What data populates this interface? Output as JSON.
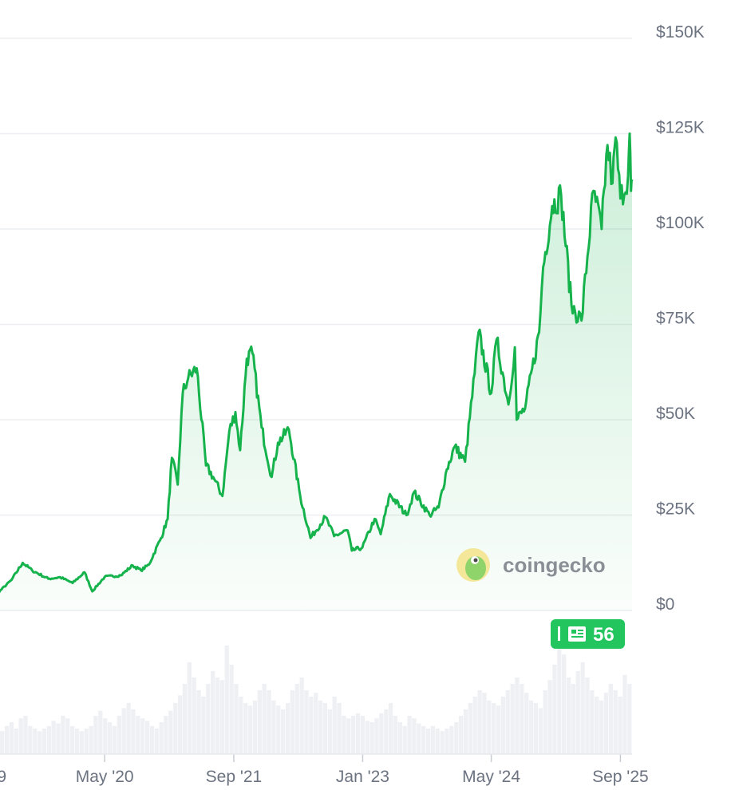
{
  "chart_data": {
    "type": "area",
    "title": "",
    "xlabel": "",
    "ylabel": "",
    "x_range": [
      "2019-01-01",
      "2025-10-15"
    ],
    "ylim": [
      0,
      150000
    ],
    "y_ticks": [
      {
        "value": 150000,
        "label": "$150K"
      },
      {
        "value": 125000,
        "label": "$125K"
      },
      {
        "value": 100000,
        "label": "$100K"
      },
      {
        "value": 75000,
        "label": "$75K"
      },
      {
        "value": 50000,
        "label": "$50K"
      },
      {
        "value": 25000,
        "label": "$25K"
      },
      {
        "value": 0,
        "label": "$0"
      }
    ],
    "x_ticks": [
      {
        "date": "2019-01-01",
        "label": "9"
      },
      {
        "date": "2020-05-01",
        "label": "May '20"
      },
      {
        "date": "2021-09-01",
        "label": "Sep '21"
      },
      {
        "date": "2023-01-01",
        "label": "Jan '23"
      },
      {
        "date": "2024-05-01",
        "label": "May '24"
      },
      {
        "date": "2025-09-01",
        "label": "Sep '25"
      }
    ],
    "series": [
      {
        "color": "#16b34d",
        "points": [
          [
            "2019-01-01",
            3800
          ],
          [
            "2019-03-15",
            4000
          ],
          [
            "2019-05-15",
            8000
          ],
          [
            "2019-06-26",
            12500
          ],
          [
            "2019-08-01",
            10500
          ],
          [
            "2019-10-01",
            8300
          ],
          [
            "2019-11-15",
            8700
          ],
          [
            "2020-01-01",
            7200
          ],
          [
            "2020-02-15",
            10000
          ],
          [
            "2020-03-15",
            5000
          ],
          [
            "2020-05-01",
            8800
          ],
          [
            "2020-07-01",
            9200
          ],
          [
            "2020-08-15",
            11800
          ],
          [
            "2020-09-15",
            10500
          ],
          [
            "2020-10-15",
            12000
          ],
          [
            "2020-11-30",
            19000
          ],
          [
            "2020-12-25",
            24000
          ],
          [
            "2021-01-10",
            40000
          ],
          [
            "2021-02-01",
            33000
          ],
          [
            "2021-02-20",
            57000
          ],
          [
            "2021-03-13",
            61000
          ],
          [
            "2021-04-14",
            63500
          ],
          [
            "2021-05-19",
            38000
          ],
          [
            "2021-06-15",
            35000
          ],
          [
            "2021-07-20",
            30000
          ],
          [
            "2021-08-15",
            47000
          ],
          [
            "2021-09-07",
            52000
          ],
          [
            "2021-09-25",
            42000
          ],
          [
            "2021-10-20",
            66000
          ],
          [
            "2021-11-10",
            67500
          ],
          [
            "2021-12-15",
            48000
          ],
          [
            "2022-01-22",
            35000
          ],
          [
            "2022-02-15",
            44000
          ],
          [
            "2022-03-28",
            47500
          ],
          [
            "2022-05-10",
            30000
          ],
          [
            "2022-06-18",
            19000
          ],
          [
            "2022-08-13",
            24500
          ],
          [
            "2022-09-15",
            19500
          ],
          [
            "2022-11-05",
            21000
          ],
          [
            "2022-11-21",
            15700
          ],
          [
            "2022-12-31",
            16500
          ],
          [
            "2023-02-15",
            24000
          ],
          [
            "2023-03-10",
            20000
          ],
          [
            "2023-04-14",
            30500
          ],
          [
            "2023-06-15",
            25000
          ],
          [
            "2023-07-14",
            31000
          ],
          [
            "2023-09-11",
            25000
          ],
          [
            "2023-10-15",
            27000
          ],
          [
            "2023-11-15",
            37000
          ],
          [
            "2023-12-15",
            43000
          ],
          [
            "2024-01-23",
            39000
          ],
          [
            "2024-02-28",
            62000
          ],
          [
            "2024-03-14",
            73000
          ],
          [
            "2024-05-01",
            57000
          ],
          [
            "2024-05-21",
            71000
          ],
          [
            "2024-07-05",
            54000
          ],
          [
            "2024-07-29",
            69000
          ],
          [
            "2024-08-05",
            50000
          ],
          [
            "2024-09-06",
            53000
          ],
          [
            "2024-10-29",
            73000
          ],
          [
            "2024-11-13",
            90000
          ],
          [
            "2024-12-17",
            106000
          ],
          [
            "2025-01-20",
            109000
          ],
          [
            "2025-02-28",
            80000
          ],
          [
            "2025-04-07",
            76000
          ],
          [
            "2025-05-22",
            110000
          ],
          [
            "2025-06-22",
            100000
          ],
          [
            "2025-07-14",
            122000
          ],
          [
            "2025-08-02",
            112000
          ],
          [
            "2025-08-14",
            124000
          ],
          [
            "2025-09-01",
            108000
          ],
          [
            "2025-09-30",
            114000
          ],
          [
            "2025-10-06",
            125000
          ],
          [
            "2025-10-11",
            110000
          ],
          [
            "2025-10-15",
            113000
          ]
        ]
      }
    ],
    "volume": [
      0.18,
      0.22,
      0.25,
      0.2,
      0.28,
      0.3,
      0.22,
      0.2,
      0.18,
      0.2,
      0.22,
      0.26,
      0.24,
      0.3,
      0.28,
      0.22,
      0.2,
      0.18,
      0.2,
      0.22,
      0.3,
      0.34,
      0.28,
      0.25,
      0.22,
      0.3,
      0.36,
      0.4,
      0.35,
      0.3,
      0.28,
      0.26,
      0.22,
      0.2,
      0.25,
      0.3,
      0.34,
      0.4,
      0.46,
      0.55,
      0.72,
      0.6,
      0.5,
      0.45,
      0.55,
      0.65,
      0.6,
      0.58,
      0.85,
      0.7,
      0.55,
      0.45,
      0.4,
      0.38,
      0.42,
      0.5,
      0.55,
      0.5,
      0.42,
      0.38,
      0.35,
      0.4,
      0.5,
      0.55,
      0.6,
      0.5,
      0.45,
      0.48,
      0.42,
      0.4,
      0.35,
      0.45,
      0.4,
      0.3,
      0.28,
      0.3,
      0.32,
      0.3,
      0.26,
      0.25,
      0.28,
      0.32,
      0.35,
      0.4,
      0.3,
      0.25,
      0.22,
      0.3,
      0.28,
      0.24,
      0.22,
      0.2,
      0.22,
      0.2,
      0.18,
      0.2,
      0.22,
      0.25,
      0.3,
      0.35,
      0.4,
      0.45,
      0.5,
      0.48,
      0.42,
      0.4,
      0.38,
      0.45,
      0.5,
      0.55,
      0.6,
      0.55,
      0.48,
      0.42,
      0.4,
      0.36,
      0.5,
      0.58,
      0.7,
      0.85,
      0.78,
      0.6,
      0.55,
      0.65,
      0.72,
      0.6,
      0.5,
      0.45,
      0.42,
      0.48,
      0.55,
      0.5,
      0.45,
      0.62,
      0.55
    ],
    "annotations": [
      {
        "label": "56",
        "date": "2025-08-01"
      }
    ]
  },
  "watermark": {
    "text": "coingecko"
  },
  "icons": {
    "badge": "news-icon",
    "logo": "coingecko-logo-icon"
  }
}
